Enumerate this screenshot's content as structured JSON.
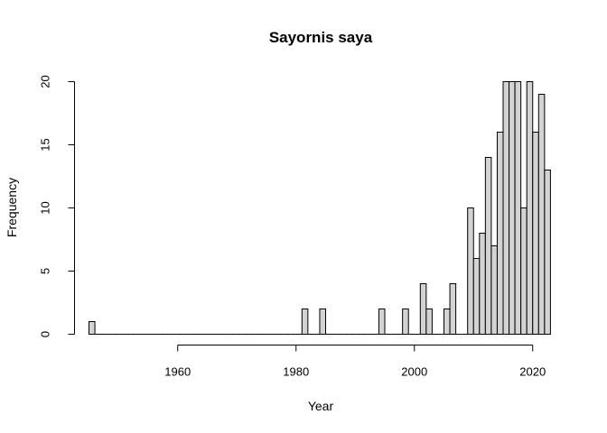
{
  "chart_data": {
    "type": "bar",
    "title": "Sayornis saya",
    "xlabel": "Year",
    "ylabel": "Frequency",
    "bin_width": 1,
    "xlim": [
      1945,
      2023
    ],
    "ylim": [
      0,
      20
    ],
    "x_ticks": [
      1960,
      1980,
      2000,
      2020
    ],
    "y_ticks": [
      0,
      5,
      10,
      15,
      20
    ],
    "grid": false,
    "bar_fill": "#d3d3d3",
    "bar_stroke": "#000000",
    "bins_start": [
      1945,
      1946,
      1947,
      1948,
      1949,
      1950,
      1951,
      1952,
      1953,
      1954,
      1955,
      1956,
      1957,
      1958,
      1959,
      1960,
      1961,
      1962,
      1963,
      1964,
      1965,
      1966,
      1967,
      1968,
      1969,
      1970,
      1971,
      1972,
      1973,
      1974,
      1975,
      1976,
      1977,
      1978,
      1979,
      1980,
      1981,
      1982,
      1983,
      1984,
      1985,
      1986,
      1987,
      1988,
      1989,
      1990,
      1991,
      1992,
      1993,
      1994,
      1995,
      1996,
      1997,
      1998,
      1999,
      2000,
      2001,
      2002,
      2003,
      2004,
      2005,
      2006,
      2007,
      2008,
      2009,
      2010,
      2011,
      2012,
      2013,
      2014,
      2015,
      2016,
      2017,
      2018,
      2019,
      2020,
      2021,
      2022
    ],
    "values": [
      1,
      0,
      0,
      0,
      0,
      0,
      0,
      0,
      0,
      0,
      0,
      0,
      0,
      0,
      0,
      0,
      0,
      0,
      0,
      0,
      0,
      0,
      0,
      0,
      0,
      0,
      0,
      0,
      0,
      0,
      0,
      0,
      0,
      0,
      0,
      0,
      2,
      0,
      0,
      2,
      0,
      0,
      0,
      0,
      0,
      0,
      0,
      0,
      0,
      2,
      0,
      0,
      0,
      2,
      0,
      0,
      4,
      2,
      0,
      0,
      2,
      4,
      0,
      0,
      10,
      6,
      8,
      14,
      7,
      16,
      20,
      20,
      20,
      10,
      20,
      16,
      19,
      13
    ]
  }
}
